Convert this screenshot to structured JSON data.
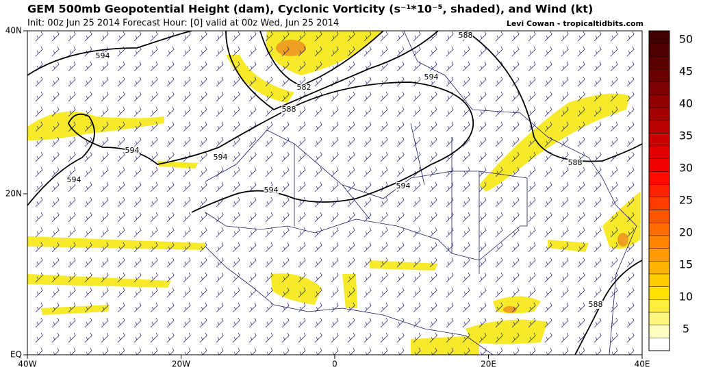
{
  "header": {
    "title": "GEM 500mb Geopotential Height (dam), Cyclonic Vorticity (s⁻¹*10⁻⁵, shaded), and Wind (kt)",
    "subtitle": "Init: 00z Jun 25 2014 Forecast Hour: [0] valid at 00z Wed, Jun 25 2014",
    "credit": "Levi Cowan - tropicaltidbits.com"
  },
  "map": {
    "lat_labels": [
      "40N",
      "20N",
      "EQ"
    ],
    "lon_labels": [
      "40W",
      "20W",
      "0",
      "20E",
      "40E"
    ],
    "contour_labels": [
      "594",
      "582",
      "588",
      "594",
      "588",
      "594",
      "594",
      "594",
      "594",
      "594",
      "588",
      "588"
    ]
  },
  "colorbar": {
    "labels": [
      "5",
      "10",
      "15",
      "20",
      "25",
      "30",
      "35",
      "40",
      "45",
      "50"
    ]
  }
}
